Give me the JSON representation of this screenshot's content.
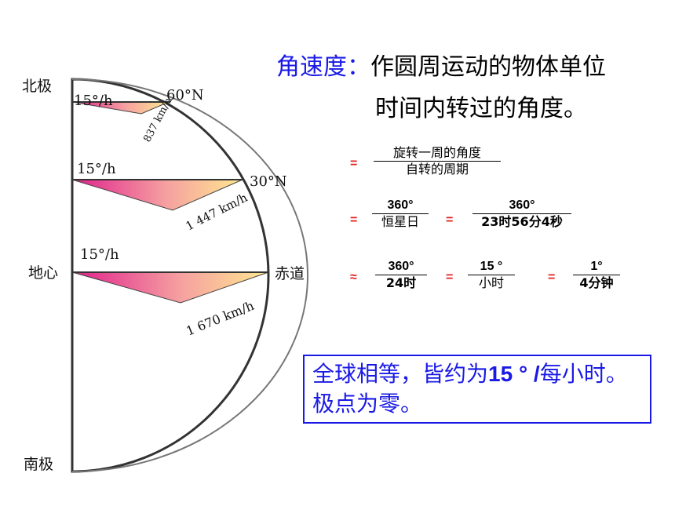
{
  "diagram": {
    "labels": {
      "north_pole": "北极",
      "earth_center": "地心",
      "south_pole": "南极",
      "lat_60": "60°N",
      "lat_30": "30°N",
      "equator": "赤道",
      "rate_60": "15°/h",
      "rate_30": "15°/h",
      "rate_eq": "15°/h",
      "speed_60": "837 km/h",
      "speed_30": "1 447 km/h",
      "speed_eq": "1 670 km/h"
    }
  },
  "definition": {
    "term": "角速度：",
    "text_line1": "作圆周运动的物体单位",
    "text_line2": "时间内转过的角度。"
  },
  "formula": {
    "row1": {
      "op": "=",
      "num": "旋转一周的角度",
      "den": "自转的周期"
    },
    "row2": {
      "op1": "=",
      "f1_num": "360°",
      "f1_den": "恒星日",
      "op2": "=",
      "f2_num": "360°",
      "f2_den": "23时56分4秒"
    },
    "row3": {
      "op1": "≈",
      "f1_num": "360°",
      "f1_den": "24时",
      "op2": "=",
      "f2_num": "15 °",
      "f2_den": "小时",
      "op3": "=",
      "f3_num": "1°",
      "f3_den": "4分钟"
    }
  },
  "summary": {
    "part1": "全球相等，皆约为",
    "value": "15 ° /",
    "part2": "每小时。极点为零。"
  },
  "colors": {
    "accent_blue": "#1a1ae6",
    "operator_red": "#e02020",
    "fan_start": "#e0208c",
    "fan_end": "#ffe08a"
  }
}
